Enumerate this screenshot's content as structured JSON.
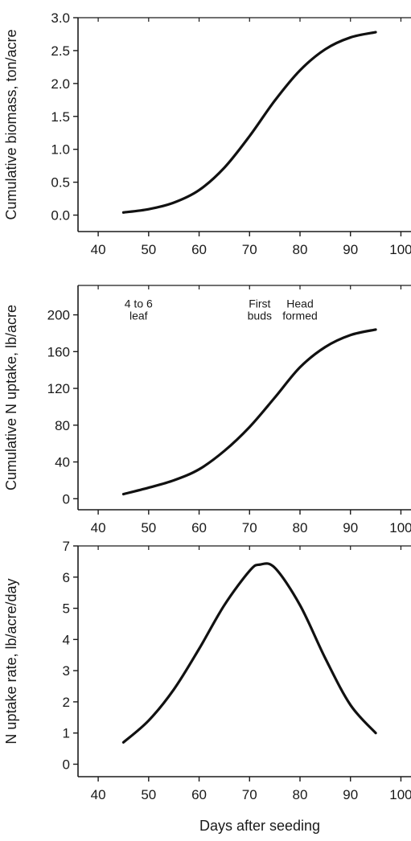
{
  "x_axis_title": "Days after seeding",
  "chart_data": [
    {
      "type": "line",
      "title": "",
      "xlabel": "",
      "ylabel": "Cumulative biomass, ton/acre",
      "xlim": [
        36,
        102
      ],
      "ylim": [
        -0.25,
        3.0
      ],
      "xticks": [
        40,
        50,
        60,
        70,
        80,
        90,
        100
      ],
      "yticks": [
        0.0,
        0.5,
        1.0,
        1.5,
        2.0,
        2.5,
        3.0
      ],
      "ytick_labels": [
        "0.0",
        "0.5",
        "1.0",
        "1.5",
        "2.0",
        "2.5",
        "3.0"
      ],
      "grid": false,
      "series": [
        {
          "x": [
            45,
            50,
            55,
            60,
            65,
            70,
            75,
            80,
            85,
            90,
            95
          ],
          "y": [
            0.04,
            0.09,
            0.19,
            0.38,
            0.72,
            1.2,
            1.74,
            2.2,
            2.52,
            2.7,
            2.78
          ]
        }
      ],
      "annotations": []
    },
    {
      "type": "line",
      "title": "",
      "xlabel": "",
      "ylabel": "Cumulative N uptake, lb/acre",
      "xlim": [
        36,
        102
      ],
      "ylim": [
        -12,
        232
      ],
      "xticks": [
        40,
        50,
        60,
        70,
        80,
        90,
        100
      ],
      "yticks": [
        0,
        40,
        80,
        120,
        160,
        200
      ],
      "ytick_labels": [
        "0",
        "40",
        "80",
        "120",
        "160",
        "200"
      ],
      "grid": false,
      "series": [
        {
          "x": [
            45,
            50,
            55,
            60,
            65,
            70,
            75,
            80,
            85,
            90,
            95
          ],
          "y": [
            5,
            12,
            20,
            32,
            52,
            78,
            110,
            143,
            165,
            178,
            184
          ]
        }
      ],
      "annotations": [
        {
          "lines": [
            "4 to 6",
            "leaf"
          ],
          "x": 48,
          "y": 208
        },
        {
          "lines": [
            "First",
            "buds"
          ],
          "x": 72,
          "y": 208
        },
        {
          "lines": [
            "Head",
            "formed"
          ],
          "x": 80,
          "y": 208
        }
      ]
    },
    {
      "type": "line",
      "title": "",
      "xlabel": "Days after seeding",
      "ylabel": "N uptake rate, lb/acre/day",
      "xlim": [
        36,
        102
      ],
      "ylim": [
        -0.4,
        7
      ],
      "xticks": [
        40,
        50,
        60,
        70,
        80,
        90,
        100
      ],
      "yticks": [
        0,
        1,
        2,
        3,
        4,
        5,
        6,
        7
      ],
      "ytick_labels": [
        "0",
        "1",
        "2",
        "3",
        "4",
        "5",
        "6",
        "7"
      ],
      "grid": false,
      "series": [
        {
          "x": [
            45,
            50,
            55,
            60,
            65,
            70,
            72,
            75,
            80,
            85,
            90,
            95
          ],
          "y": [
            0.7,
            1.4,
            2.4,
            3.7,
            5.1,
            6.2,
            6.4,
            6.3,
            5.1,
            3.4,
            1.9,
            1.0
          ]
        }
      ],
      "annotations": []
    }
  ]
}
